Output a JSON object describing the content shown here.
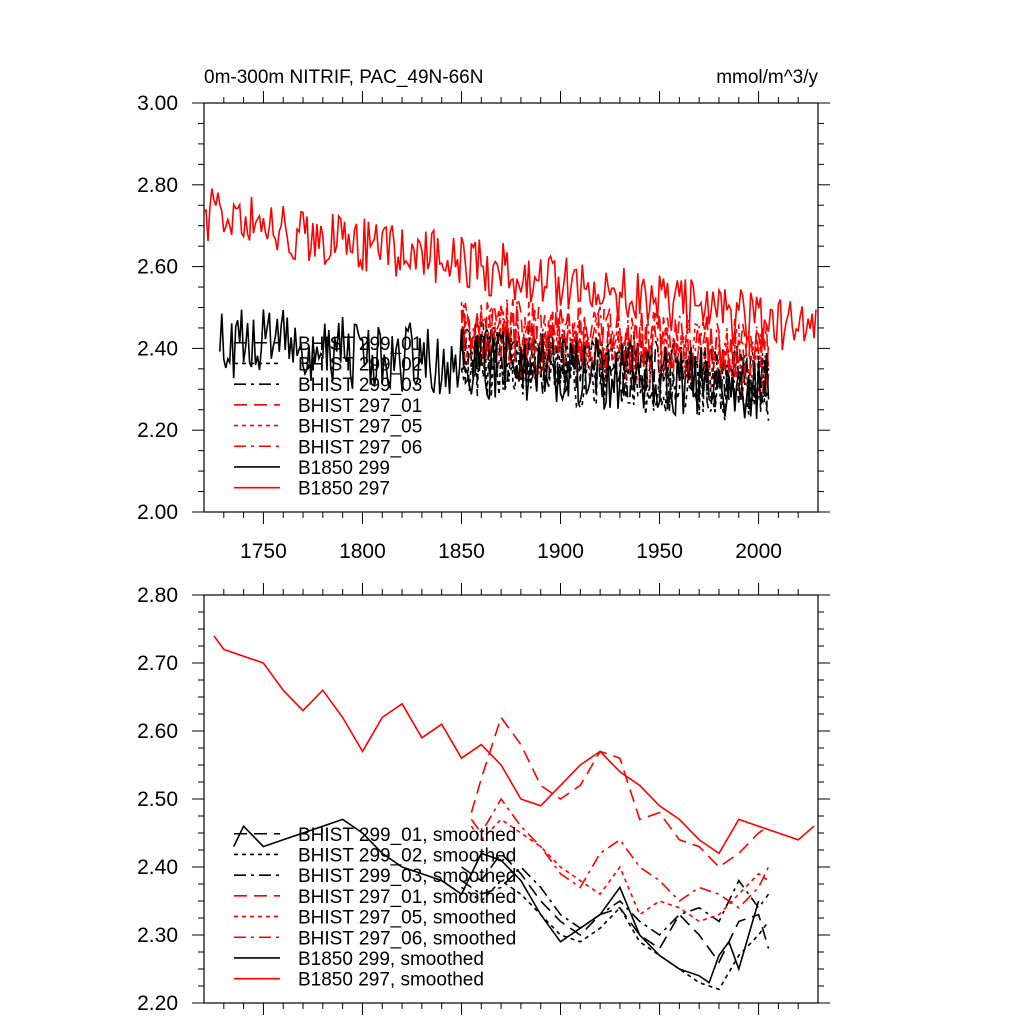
{
  "colors": {
    "black": "#000000",
    "red": "#ff0000"
  },
  "chart_data": [
    {
      "type": "line",
      "title": "0m-300m NITRIF, PAC_49N-66N",
      "units": "mmol/m^3/y",
      "xlim": [
        1720,
        2030
      ],
      "ylim": [
        2.0,
        3.0
      ],
      "yticks": [
        2.0,
        2.2,
        2.4,
        2.6,
        2.8,
        3.0
      ],
      "ytick_labels": [
        "2.00",
        "2.20",
        "2.40",
        "2.60",
        "2.80",
        "3.00"
      ],
      "xticks": [
        1750,
        1800,
        1850,
        1900,
        1950,
        2000
      ],
      "xtick_labels": [
        "1750",
        "1800",
        "1850",
        "1900",
        "1950",
        "2000"
      ],
      "legend_position": "lower-left",
      "series": [
        {
          "name": "BHIST 299_01",
          "color": "#000000",
          "dash": "long",
          "x_start": 1850,
          "x_end": 2005,
          "mean_start": 2.4,
          "mean_end": 2.32,
          "noise": 0.08,
          "seed": 11
        },
        {
          "name": "BHIST 299_02",
          "color": "#000000",
          "dash": "short",
          "x_start": 1850,
          "x_end": 2005,
          "mean_start": 2.37,
          "mean_end": 2.3,
          "noise": 0.09,
          "seed": 12
        },
        {
          "name": "BHIST 299_03",
          "color": "#000000",
          "dash": "dashdot",
          "x_start": 1850,
          "x_end": 2005,
          "mean_start": 2.38,
          "mean_end": 2.31,
          "noise": 0.08,
          "seed": 13
        },
        {
          "name": "BHIST 297_01",
          "color": "#ff0000",
          "dash": "long",
          "x_start": 1850,
          "x_end": 2005,
          "mean_start": 2.45,
          "mean_end": 2.4,
          "noise": 0.08,
          "seed": 14
        },
        {
          "name": "BHIST 297_05",
          "color": "#ff0000",
          "dash": "short",
          "x_start": 1850,
          "x_end": 2005,
          "mean_start": 2.43,
          "mean_end": 2.36,
          "noise": 0.09,
          "seed": 15
        },
        {
          "name": "BHIST 297_06",
          "color": "#ff0000",
          "dash": "dashdot",
          "x_start": 1850,
          "x_end": 2005,
          "mean_start": 2.46,
          "mean_end": 2.38,
          "noise": 0.08,
          "seed": 16
        },
        {
          "name": "B1850 299",
          "color": "#000000",
          "dash": "solid",
          "x_start": 1728,
          "x_end": 2005,
          "mean_start": 2.42,
          "mean_end": 2.3,
          "noise": 0.09,
          "seed": 17
        },
        {
          "name": "B1850 297",
          "color": "#ff0000",
          "dash": "solid",
          "x_start": 1720,
          "x_end": 2029,
          "mean_start": 2.73,
          "mean_end": 2.44,
          "noise": 0.07,
          "seed": 18
        }
      ]
    },
    {
      "type": "line",
      "title": "",
      "xlim": [
        1720,
        2030
      ],
      "ylim": [
        2.2,
        2.8
      ],
      "yticks": [
        2.2,
        2.3,
        2.4,
        2.5,
        2.6,
        2.7,
        2.8
      ],
      "ytick_labels": [
        "2.20",
        "2.30",
        "2.40",
        "2.50",
        "2.60",
        "2.70",
        "2.80"
      ],
      "xticks": [
        1750,
        1800,
        1850,
        1900,
        1950,
        2000
      ],
      "xtick_labels": [],
      "legend_position": "lower-left",
      "series": [
        {
          "name": "BHIST 299_01, smoothed",
          "color": "#000000",
          "dash": "long",
          "x": [
            1850,
            1860,
            1870,
            1880,
            1890,
            1900,
            1910,
            1920,
            1930,
            1940,
            1950,
            1960,
            1970,
            1980,
            1990,
            2000,
            2005
          ],
          "y": [
            2.4,
            2.38,
            2.42,
            2.39,
            2.35,
            2.32,
            2.3,
            2.33,
            2.34,
            2.3,
            2.28,
            2.33,
            2.3,
            2.26,
            2.32,
            2.33,
            2.28
          ]
        },
        {
          "name": "BHIST 299_02, smoothed",
          "color": "#000000",
          "dash": "short",
          "x": [
            1850,
            1860,
            1870,
            1880,
            1890,
            1900,
            1910,
            1920,
            1930,
            1940,
            1950,
            1960,
            1970,
            1980,
            1990,
            2000,
            2005
          ],
          "y": [
            2.37,
            2.35,
            2.38,
            2.36,
            2.33,
            2.3,
            2.29,
            2.31,
            2.34,
            2.29,
            2.27,
            2.25,
            2.23,
            2.22,
            2.27,
            2.3,
            2.32
          ]
        },
        {
          "name": "BHIST 299_03, smoothed",
          "color": "#000000",
          "dash": "dashdot",
          "x": [
            1850,
            1860,
            1870,
            1880,
            1890,
            1900,
            1910,
            1920,
            1930,
            1940,
            1950,
            1960,
            1970,
            1980,
            1990,
            2000,
            2005
          ],
          "y": [
            2.38,
            2.36,
            2.37,
            2.4,
            2.37,
            2.33,
            2.31,
            2.33,
            2.35,
            2.32,
            2.3,
            2.33,
            2.34,
            2.32,
            2.38,
            2.34,
            2.36
          ]
        },
        {
          "name": "BHIST 297_01, smoothed",
          "color": "#ff0000",
          "dash": "long",
          "x": [
            1855,
            1860,
            1870,
            1880,
            1890,
            1900,
            1910,
            1920,
            1930,
            1940,
            1950,
            1960,
            1970,
            1980,
            1990,
            2000,
            2005
          ],
          "y": [
            2.48,
            2.53,
            2.62,
            2.58,
            2.52,
            2.5,
            2.52,
            2.57,
            2.56,
            2.47,
            2.48,
            2.44,
            2.43,
            2.4,
            2.42,
            2.45,
            2.46
          ]
        },
        {
          "name": "BHIST 297_05, smoothed",
          "color": "#ff0000",
          "dash": "short",
          "x": [
            1855,
            1860,
            1870,
            1880,
            1890,
            1900,
            1910,
            1920,
            1930,
            1940,
            1950,
            1960,
            1970,
            1980,
            1990,
            2000,
            2005
          ],
          "y": [
            2.46,
            2.44,
            2.47,
            2.45,
            2.43,
            2.4,
            2.38,
            2.36,
            2.4,
            2.33,
            2.35,
            2.34,
            2.32,
            2.33,
            2.36,
            2.39,
            2.38
          ]
        },
        {
          "name": "BHIST 297_06, smoothed",
          "color": "#ff0000",
          "dash": "dashdot",
          "x": [
            1855,
            1860,
            1870,
            1880,
            1890,
            1900,
            1910,
            1920,
            1930,
            1940,
            1950,
            1960,
            1970,
            1980,
            1990,
            2000,
            2005
          ],
          "y": [
            2.47,
            2.45,
            2.5,
            2.46,
            2.43,
            2.39,
            2.37,
            2.42,
            2.44,
            2.4,
            2.38,
            2.35,
            2.37,
            2.36,
            2.34,
            2.37,
            2.4
          ]
        },
        {
          "name": "B1850 299, smoothed",
          "color": "#000000",
          "dash": "solid",
          "x": [
            1735,
            1740,
            1750,
            1760,
            1770,
            1780,
            1790,
            1800,
            1810,
            1820,
            1830,
            1840,
            1850,
            1860,
            1870,
            1880,
            1890,
            1900,
            1910,
            1920,
            1930,
            1940,
            1950,
            1960,
            1970,
            1975,
            1980,
            1985,
            1990,
            2000
          ],
          "y": [
            2.43,
            2.46,
            2.43,
            2.44,
            2.45,
            2.46,
            2.47,
            2.45,
            2.42,
            2.4,
            2.39,
            2.38,
            2.36,
            2.42,
            2.41,
            2.38,
            2.33,
            2.29,
            2.31,
            2.33,
            2.37,
            2.3,
            2.27,
            2.25,
            2.24,
            2.23,
            2.27,
            2.29,
            2.25,
            2.35
          ]
        },
        {
          "name": "B1850 297, smoothed",
          "color": "#ff0000",
          "dash": "solid",
          "x": [
            1725,
            1730,
            1740,
            1750,
            1760,
            1770,
            1780,
            1790,
            1800,
            1810,
            1820,
            1830,
            1840,
            1850,
            1860,
            1870,
            1880,
            1890,
            1900,
            1910,
            1920,
            1930,
            1940,
            1950,
            1960,
            1970,
            1980,
            1990,
            2000,
            2010,
            2020,
            2028
          ],
          "y": [
            2.74,
            2.72,
            2.71,
            2.7,
            2.66,
            2.63,
            2.66,
            2.62,
            2.57,
            2.62,
            2.64,
            2.59,
            2.61,
            2.56,
            2.58,
            2.55,
            2.5,
            2.49,
            2.52,
            2.55,
            2.57,
            2.54,
            2.52,
            2.49,
            2.47,
            2.44,
            2.42,
            2.47,
            2.46,
            2.45,
            2.44,
            2.46
          ]
        }
      ]
    }
  ]
}
